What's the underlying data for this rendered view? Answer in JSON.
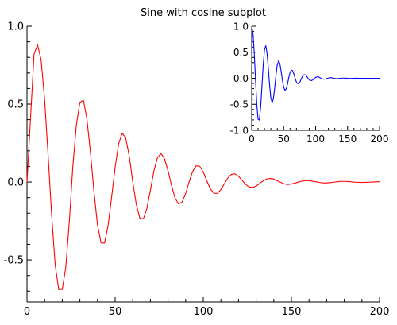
{
  "chart_data": [
    {
      "type": "line",
      "title": "Sine with cosine subplot",
      "xlabel": "",
      "ylabel": "",
      "xlim": [
        0,
        200
      ],
      "ylim": [
        -0.77,
        1.0
      ],
      "xticks": [
        0,
        50,
        100,
        150,
        200
      ],
      "xtick_labels": [
        "0",
        "50",
        "100",
        "150",
        "200"
      ],
      "yticks": [
        1.0,
        0.5,
        0.0,
        -0.5
      ],
      "ytick_labels": [
        "1.0",
        "0.5",
        "0.0",
        "-0.5"
      ],
      "grid": false,
      "legend": "none",
      "series": [
        {
          "color": "#ff0000",
          "x": [
            0,
            4,
            6,
            8,
            10,
            12,
            14,
            16,
            18,
            20,
            22,
            24,
            26,
            28,
            30,
            32,
            34,
            36,
            38,
            40,
            42,
            44,
            46,
            48,
            50,
            52,
            54,
            56,
            58,
            60,
            62,
            64,
            66,
            68,
            70,
            72,
            74,
            76,
            78,
            80,
            82,
            84,
            86,
            88,
            90,
            92,
            94,
            96,
            98,
            100,
            102,
            104,
            106,
            108,
            110,
            112,
            114,
            116,
            118,
            120,
            122,
            124,
            126,
            128,
            130,
            132,
            134,
            136,
            138,
            140,
            142,
            144,
            146,
            148,
            150,
            152,
            154,
            156,
            158,
            160,
            162,
            164,
            166,
            168,
            170,
            172,
            174,
            176,
            178,
            180,
            182,
            184,
            186,
            188,
            190,
            192,
            194,
            196,
            198,
            200
          ],
          "y": [
            0.0,
            0.821,
            0.881,
            0.783,
            0.529,
            0.169,
            -0.214,
            -0.534,
            -0.69,
            -0.689,
            -0.547,
            -0.257,
            0.1,
            0.365,
            0.511,
            0.525,
            0.405,
            0.189,
            -0.063,
            -0.276,
            -0.391,
            -0.392,
            -0.279,
            -0.098,
            0.095,
            0.246,
            0.314,
            0.283,
            0.166,
            0.001,
            -0.144,
            -0.231,
            -0.237,
            -0.17,
            -0.054,
            0.072,
            0.156,
            0.183,
            0.15,
            0.072,
            -0.023,
            -0.103,
            -0.141,
            -0.129,
            -0.074,
            0.002,
            0.069,
            0.104,
            0.101,
            0.064,
            0.008,
            -0.043,
            -0.072,
            -0.073,
            -0.048,
            -0.011,
            0.027,
            0.049,
            0.052,
            0.037,
            0.011,
            -0.015,
            -0.032,
            -0.035,
            -0.026,
            -0.009,
            0.008,
            0.02,
            0.023,
            0.019,
            0.008,
            -0.003,
            -0.012,
            -0.016,
            -0.013,
            -0.007,
            0.0,
            0.006,
            0.009,
            0.009,
            0.005,
            0.001,
            -0.003,
            -0.006,
            -0.006,
            -0.004,
            -0.001,
            0.002,
            0.004,
            0.004,
            0.003,
            0.001,
            -0.001,
            -0.002,
            -0.003,
            -0.002,
            -0.001,
            0.0,
            0.001,
            0.002
          ]
        }
      ]
    },
    {
      "type": "line",
      "title": "",
      "xlabel": "",
      "ylabel": "",
      "xlim": [
        0,
        200
      ],
      "ylim": [
        -1.0,
        1.0
      ],
      "xticks": [
        0,
        50,
        100,
        150,
        200
      ],
      "xtick_labels": [
        "0",
        "50",
        "100",
        "150",
        "200"
      ],
      "yticks": [
        1.0,
        0.5,
        0.0,
        -0.5,
        -1.0
      ],
      "ytick_labels": [
        "1.0",
        "0.5",
        "0.0",
        "-0.5",
        "-1.0"
      ],
      "grid": false,
      "legend": "none",
      "series": [
        {
          "color": "#0000ff",
          "x": [
            0,
            2,
            4,
            6,
            8,
            10,
            12,
            14,
            16,
            18,
            20,
            22,
            24,
            26,
            28,
            30,
            32,
            34,
            36,
            38,
            40,
            42,
            44,
            46,
            48,
            50,
            52,
            54,
            56,
            58,
            60,
            62,
            64,
            66,
            68,
            70,
            72,
            74,
            76,
            78,
            80,
            82,
            84,
            86,
            88,
            90,
            92,
            94,
            96,
            98,
            100,
            102,
            104,
            106,
            108,
            110,
            112,
            114,
            116,
            118,
            120,
            122,
            124,
            126,
            128,
            130,
            132,
            134,
            136,
            138,
            140,
            142,
            144,
            146,
            148,
            150,
            152,
            154,
            156,
            158,
            160,
            162,
            164,
            166,
            168,
            170,
            172,
            174,
            176,
            178,
            180,
            182,
            184,
            186,
            188,
            190,
            192,
            194,
            196,
            198,
            200
          ],
          "y": [
            1.0,
            0.862,
            0.481,
            -0.029,
            -0.503,
            -0.79,
            -0.803,
            -0.554,
            -0.157,
            0.256,
            0.546,
            0.626,
            0.481,
            0.191,
            -0.136,
            -0.381,
            -0.466,
            -0.381,
            -0.181,
            0.065,
            0.258,
            0.334,
            0.287,
            0.141,
            -0.035,
            -0.172,
            -0.231,
            -0.207,
            -0.113,
            0.013,
            0.112,
            0.156,
            0.145,
            0.082,
            -0.003,
            -0.073,
            -0.104,
            -0.099,
            -0.058,
            -0.001,
            0.045,
            0.068,
            0.066,
            0.038,
            0.005,
            -0.029,
            -0.043,
            -0.043,
            -0.026,
            -0.003,
            0.017,
            0.027,
            0.027,
            0.017,
            0.003,
            -0.01,
            -0.017,
            -0.018,
            -0.011,
            -0.002,
            0.006,
            0.01,
            0.011,
            0.007,
            0.002,
            -0.003,
            -0.006,
            -0.007,
            -0.005,
            -0.001,
            0.002,
            0.004,
            0.004,
            0.003,
            0.001,
            -0.001,
            -0.002,
            -0.003,
            -0.002,
            -0.001,
            0.0,
            0.001,
            0.001,
            0.001,
            0.0,
            0.0,
            -0.001,
            -0.001,
            -0.001,
            0.0,
            0.0,
            0.0,
            0.0,
            0.0,
            0.0,
            0.0,
            0.0,
            0.0,
            0.0,
            0.0,
            0.0
          ]
        }
      ]
    }
  ]
}
